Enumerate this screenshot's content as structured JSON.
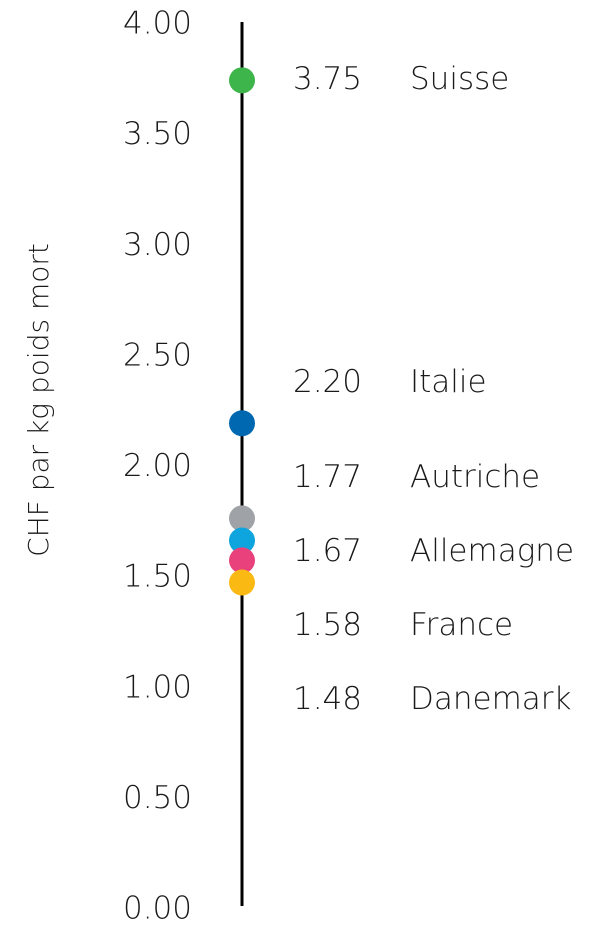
{
  "chart_data": {
    "type": "dot",
    "ylabel": "CHF par kg poids mort",
    "categories": [
      "Suisse",
      "Italie",
      "Autriche",
      "Allemagne",
      "France",
      "Danemark"
    ],
    "values": [
      3.75,
      2.2,
      1.77,
      1.67,
      1.58,
      1.48
    ],
    "value_labels": [
      "3.75",
      "2.20",
      "1.77",
      "1.67",
      "1.58",
      "1.48"
    ],
    "colors": [
      "#3db54a",
      "#0067b1",
      "#9fa3a7",
      "#0ea5df",
      "#e8417b",
      "#fbb913"
    ],
    "ylim": [
      0,
      4
    ],
    "yticks": [
      {
        "value": 0,
        "label": "0.00"
      },
      {
        "value": 0.5,
        "label": "0.50"
      },
      {
        "value": 1,
        "label": "1.00"
      },
      {
        "value": 1.5,
        "label": "1.50"
      },
      {
        "value": 2,
        "label": "2.00"
      },
      {
        "value": 2.5,
        "label": "2.50"
      },
      {
        "value": 3,
        "label": "3.00"
      },
      {
        "value": 3.5,
        "label": "3.50"
      },
      {
        "value": 4,
        "label": "4.00"
      }
    ]
  }
}
